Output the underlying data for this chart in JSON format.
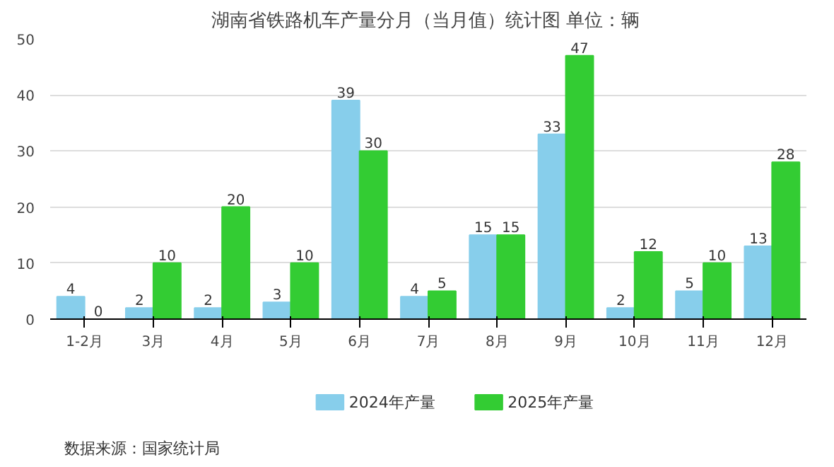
{
  "chart_data": {
    "type": "bar",
    "title": "湖南省铁路机车产量分月（当月值）统计图  单位：辆",
    "categories": [
      "1-2月",
      "3月",
      "4月",
      "5月",
      "6月",
      "7月",
      "8月",
      "9月",
      "10月",
      "11月",
      "12月"
    ],
    "series": [
      {
        "name": "2024年产量",
        "color": "#87ceeb",
        "values": [
          4,
          2,
          2,
          3,
          39,
          4,
          15,
          33,
          2,
          5,
          13
        ]
      },
      {
        "name": "2025年产量",
        "color": "#33cc33",
        "values": [
          0,
          10,
          20,
          10,
          30,
          5,
          15,
          47,
          12,
          10,
          28
        ]
      }
    ],
    "ylim": [
      0,
      50
    ],
    "yticks": [
      0,
      10,
      20,
      30,
      40,
      50
    ],
    "grid": "y",
    "legend": "bottom",
    "data_labels": true,
    "annotations": [
      "数据来源：国家统计局"
    ]
  }
}
